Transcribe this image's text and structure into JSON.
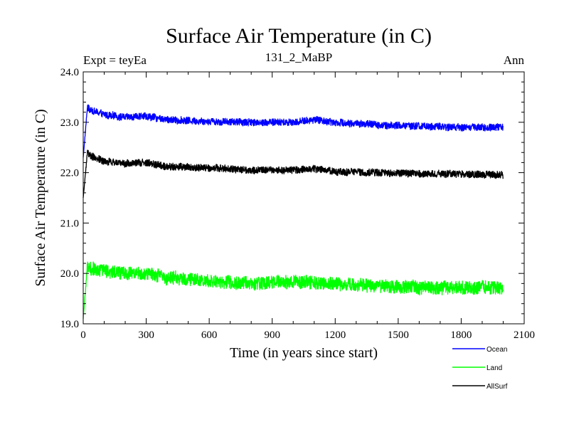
{
  "chart_data": {
    "type": "line",
    "title": "Surface Air Temperature (in C)",
    "subtitle": "131_2_MaBP",
    "left_label": "Expt = teyEa",
    "right_label": "Ann",
    "xlabel": "Time (in years since start)",
    "ylabel": "Surface Air Temperature (in C)",
    "xlim": [
      0,
      2100
    ],
    "ylim": [
      19.0,
      24.0
    ],
    "xticks": [
      0,
      300,
      600,
      900,
      1200,
      1500,
      1800,
      2100
    ],
    "xtick_labels": [
      "0",
      "300",
      "600",
      "900",
      "1200",
      "1500",
      "1800",
      "2100"
    ],
    "yticks": [
      19.0,
      20.0,
      21.0,
      22.0,
      23.0,
      24.0
    ],
    "ytick_labels": [
      "19.0",
      "20.0",
      "21.0",
      "22.0",
      "23.0",
      "24.0"
    ],
    "x_end": 2000,
    "legend_position": "bottom-right",
    "series": [
      {
        "name": "Ocean",
        "color": "#0000ff",
        "start_value": 22.3,
        "noise": 0.07,
        "trend_x": [
          0,
          20,
          30,
          100,
          200,
          300,
          400,
          600,
          800,
          1000,
          1100,
          1200,
          1400,
          1600,
          1800,
          2000
        ],
        "trend_y": [
          22.3,
          23.3,
          23.25,
          23.15,
          23.1,
          23.12,
          23.05,
          23.02,
          23.0,
          23.0,
          23.05,
          23.0,
          22.95,
          22.92,
          22.9,
          22.9
        ]
      },
      {
        "name": "Land",
        "color": "#00ff00",
        "start_value": 19.1,
        "noise": 0.13,
        "trend_x": [
          0,
          20,
          30,
          100,
          200,
          300,
          400,
          600,
          800,
          1000,
          1100,
          1200,
          1400,
          1600,
          1800,
          2000
        ],
        "trend_y": [
          19.1,
          20.15,
          20.1,
          20.05,
          20.0,
          20.0,
          19.92,
          19.85,
          19.8,
          19.85,
          19.82,
          19.8,
          19.75,
          19.72,
          19.72,
          19.7
        ]
      },
      {
        "name": "AllSurf",
        "color": "#000000",
        "start_value": 21.5,
        "noise": 0.07,
        "trend_x": [
          0,
          20,
          30,
          100,
          200,
          300,
          400,
          600,
          800,
          1000,
          1100,
          1200,
          1400,
          1600,
          1800,
          2000
        ],
        "trend_y": [
          21.5,
          22.4,
          22.35,
          22.22,
          22.18,
          22.2,
          22.12,
          22.1,
          22.05,
          22.05,
          22.08,
          22.02,
          22.0,
          21.98,
          21.97,
          21.95
        ]
      }
    ]
  }
}
